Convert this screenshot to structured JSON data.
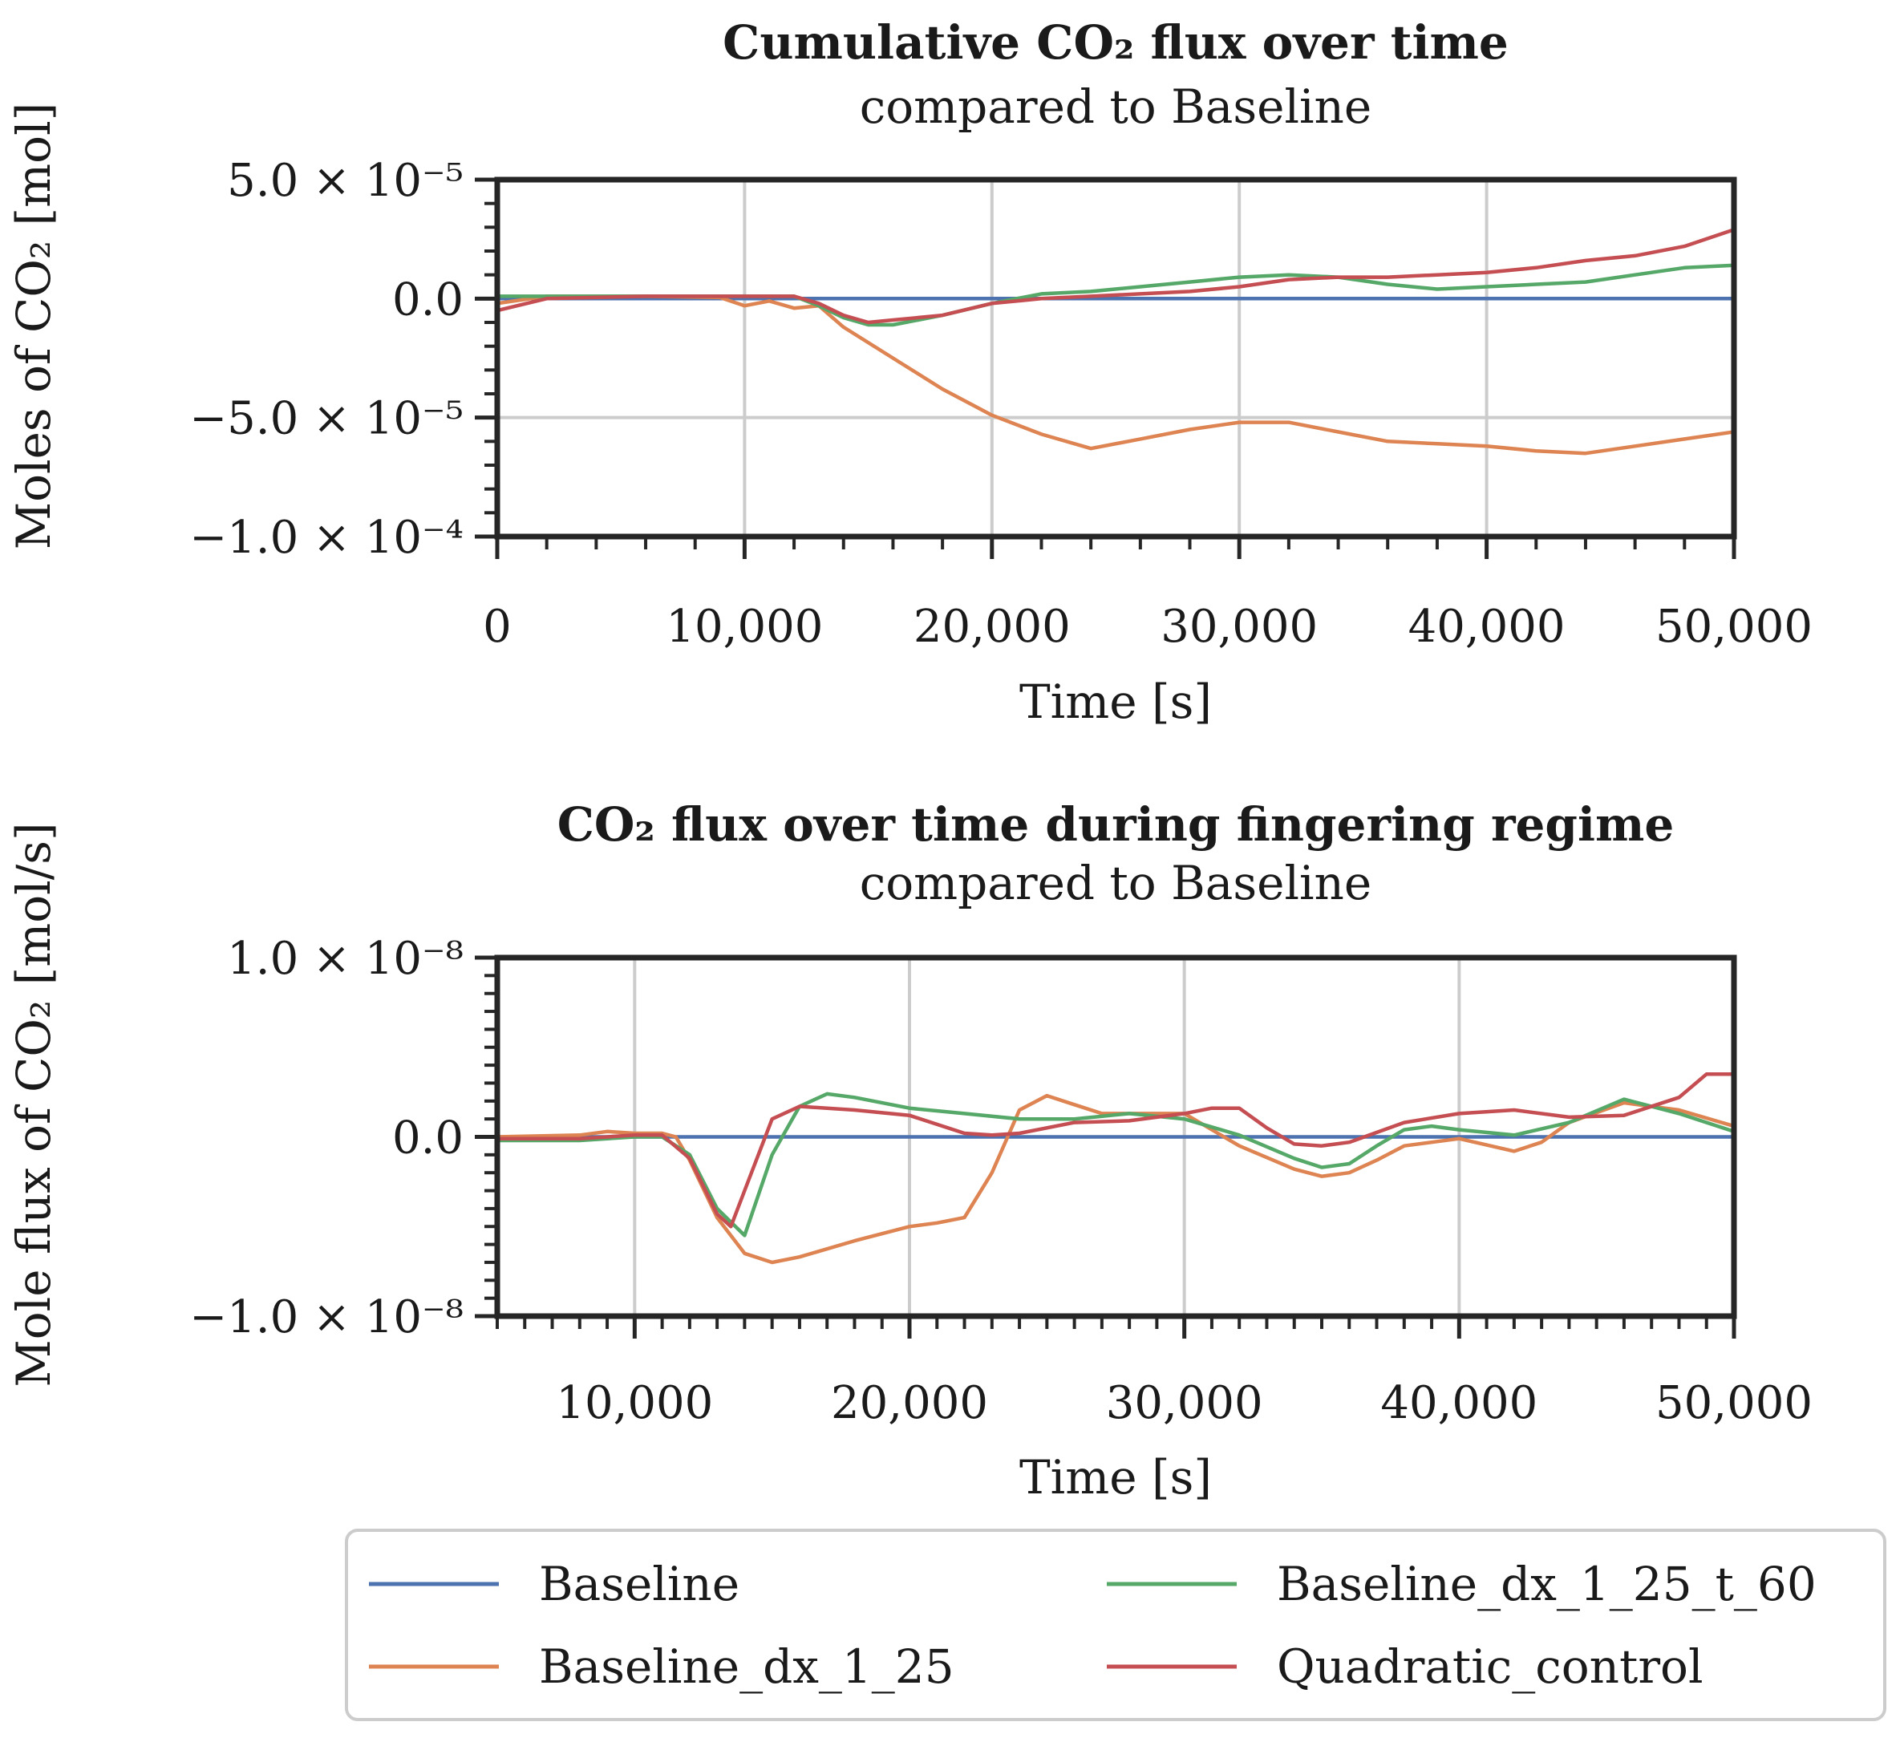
{
  "chart_data": [
    {
      "type": "line",
      "title": "Cumulative CO₂ flux over time",
      "subtitle": "compared to Baseline",
      "xlabel": "Time [s]",
      "ylabel": "Moles of CO₂ [mol]",
      "xlim": [
        0,
        50000
      ],
      "ylim": [
        -0.0001,
        5e-05
      ],
      "xticks": [
        0,
        10000,
        20000,
        30000,
        40000,
        50000
      ],
      "xtick_labels": [
        "0",
        "10,000",
        "20,000",
        "30,000",
        "40,000",
        "50,000"
      ],
      "yticks": [
        5e-05,
        0,
        -5e-05,
        -0.0001
      ],
      "ytick_labels": [
        "5.0 × 10⁻⁵",
        "0.0",
        "−5.0 × 10⁻⁵",
        "−1.0 × 10⁻⁴"
      ],
      "grid": true,
      "series": [
        {
          "name": "Baseline",
          "x": [
            0,
            50000
          ],
          "values": [
            0,
            0
          ]
        },
        {
          "name": "Baseline_dx_1_25",
          "x": [
            0,
            2000,
            6000,
            9000,
            10000,
            11000,
            12000,
            13000,
            14000,
            16000,
            18000,
            20000,
            22000,
            24000,
            26000,
            28000,
            30000,
            32000,
            34000,
            36000,
            38000,
            40000,
            42000,
            44000,
            46000,
            48000,
            50000
          ],
          "values": [
            -2e-06,
            1e-06,
            1e-06,
            5e-07,
            -3e-06,
            -1e-06,
            -4e-06,
            -3e-06,
            -1.2e-05,
            -2.5e-05,
            -3.8e-05,
            -4.9e-05,
            -5.7e-05,
            -6.3e-05,
            -5.9e-05,
            -5.5e-05,
            -5.2e-05,
            -5.2e-05,
            -5.6e-05,
            -6e-05,
            -6.1e-05,
            -6.2e-05,
            -6.4e-05,
            -6.5e-05,
            -6.2e-05,
            -5.9e-05,
            -5.6e-05
          ]
        },
        {
          "name": "Baseline_dx_1_25_t_60",
          "x": [
            0,
            2000,
            6000,
            10000,
            12000,
            13000,
            14000,
            15000,
            16000,
            18000,
            20000,
            22000,
            24000,
            26000,
            28000,
            30000,
            32000,
            34000,
            36000,
            38000,
            40000,
            42000,
            44000,
            46000,
            48000,
            50000
          ],
          "values": [
            1e-06,
            1e-06,
            1e-06,
            1e-06,
            1e-06,
            -3e-06,
            -8e-06,
            -1.1e-05,
            -1.1e-05,
            -7e-06,
            -2e-06,
            2e-06,
            3e-06,
            5e-06,
            7e-06,
            9e-06,
            1e-05,
            9e-06,
            6e-06,
            4e-06,
            5e-06,
            6e-06,
            7e-06,
            1e-05,
            1.3e-05,
            1.4e-05
          ]
        },
        {
          "name": "Quadratic_control",
          "x": [
            0,
            2000,
            6000,
            10000,
            12000,
            13000,
            14000,
            15000,
            16000,
            18000,
            20000,
            22000,
            24000,
            26000,
            28000,
            30000,
            32000,
            34000,
            36000,
            38000,
            40000,
            42000,
            44000,
            46000,
            48000,
            50000
          ],
          "values": [
            -5e-06,
            0,
            1e-06,
            1e-06,
            1e-06,
            -2e-06,
            -7e-06,
            -1e-05,
            -9e-06,
            -7e-06,
            -2e-06,
            0,
            1e-06,
            2e-06,
            3e-06,
            5e-06,
            8e-06,
            9e-06,
            9e-06,
            1e-05,
            1.1e-05,
            1.3e-05,
            1.6e-05,
            1.8e-05,
            2.2e-05,
            2.9e-05
          ]
        }
      ]
    },
    {
      "type": "line",
      "title": "CO₂ flux over time during fingering regime",
      "subtitle": "compared to Baseline",
      "xlabel": "Time [s]",
      "ylabel": "Mole flux of CO₂ [mol/s]",
      "xlim": [
        5000,
        50000
      ],
      "ylim": [
        -1e-08,
        1e-08
      ],
      "xticks": [
        10000,
        20000,
        30000,
        40000,
        50000
      ],
      "xtick_labels": [
        "10,000",
        "20,000",
        "30,000",
        "40,000",
        "50,000"
      ],
      "yticks": [
        1e-08,
        0,
        -1e-08
      ],
      "ytick_labels": [
        "1.0 × 10⁻⁸",
        "0.0",
        "−1.0 × 10⁻⁸"
      ],
      "grid": true,
      "series": [
        {
          "name": "Baseline",
          "x": [
            5000,
            50000
          ],
          "values": [
            0,
            0
          ]
        },
        {
          "name": "Baseline_dx_1_25",
          "x": [
            5000,
            8000,
            9000,
            10000,
            11000,
            11500,
            12000,
            13000,
            14000,
            15000,
            16000,
            18000,
            20000,
            21000,
            22000,
            23000,
            24000,
            25000,
            26000,
            27000,
            28000,
            30000,
            32000,
            34000,
            35000,
            36000,
            37000,
            38000,
            40000,
            42000,
            43000,
            44000,
            46000,
            48000,
            50000
          ],
          "values": [
            0,
            1e-10,
            3e-10,
            2e-10,
            2e-10,
            0,
            -1.3e-09,
            -4.5e-09,
            -6.5e-09,
            -7e-09,
            -6.7e-09,
            -5.8e-09,
            -5e-09,
            -4.8e-09,
            -4.5e-09,
            -2e-09,
            1.5e-09,
            2.3e-09,
            1.8e-09,
            1.3e-09,
            1.3e-09,
            1.3e-09,
            -5e-10,
            -1.8e-09,
            -2.2e-09,
            -2e-09,
            -1.3e-09,
            -5e-10,
            -1e-10,
            -8e-10,
            -3e-10,
            8e-10,
            1.9e-09,
            1.5e-09,
            6e-10
          ]
        },
        {
          "name": "Baseline_dx_1_25_t_60",
          "x": [
            5000,
            8000,
            10000,
            11000,
            12000,
            13000,
            14000,
            15000,
            16000,
            17000,
            18000,
            20000,
            22000,
            24000,
            26000,
            28000,
            30000,
            32000,
            34000,
            35000,
            36000,
            37000,
            38000,
            39000,
            40000,
            42000,
            44000,
            46000,
            48000,
            50000
          ],
          "values": [
            -2e-10,
            -2e-10,
            0,
            0,
            -1e-09,
            -4e-09,
            -5.5e-09,
            -1e-09,
            1.7e-09,
            2.4e-09,
            2.2e-09,
            1.6e-09,
            1.3e-09,
            1e-09,
            1e-09,
            1.3e-09,
            1e-09,
            1e-10,
            -1.2e-09,
            -1.7e-09,
            -1.5e-09,
            -5e-10,
            4e-10,
            6e-10,
            4e-10,
            1e-10,
            8e-10,
            2.1e-09,
            1.3e-09,
            3e-10
          ]
        },
        {
          "name": "Quadratic_control",
          "x": [
            5000,
            8000,
            10000,
            11000,
            12000,
            13000,
            13500,
            14000,
            15000,
            16000,
            18000,
            20000,
            22000,
            23000,
            24000,
            26000,
            28000,
            30000,
            31000,
            32000,
            33000,
            34000,
            35000,
            36000,
            38000,
            40000,
            42000,
            44000,
            46000,
            48000,
            49000,
            50000
          ],
          "values": [
            -1e-10,
            -1e-10,
            1e-10,
            1e-10,
            -1.2e-09,
            -4.3e-09,
            -5e-09,
            -3e-09,
            1e-09,
            1.7e-09,
            1.5e-09,
            1.2e-09,
            2e-10,
            1e-10,
            2e-10,
            8e-10,
            9e-10,
            1.3e-09,
            1.6e-09,
            1.6e-09,
            5e-10,
            -4e-10,
            -5e-10,
            -3e-10,
            8e-10,
            1.3e-09,
            1.5e-09,
            1.1e-09,
            1.2e-09,
            2.2e-09,
            3.5e-09,
            3.5e-09
          ]
        }
      ]
    }
  ],
  "legend": {
    "items": [
      {
        "name": "Baseline",
        "color": "#4c72b0"
      },
      {
        "name": "Baseline_dx_1_25_t_60",
        "color": "#55a868"
      },
      {
        "name": "Baseline_dx_1_25",
        "color": "#dd8452"
      },
      {
        "name": "Quadratic_control",
        "color": "#c44e52"
      }
    ]
  },
  "colors": {
    "Baseline": "#4c72b0",
    "Baseline_dx_1_25": "#dd8452",
    "Baseline_dx_1_25_t_60": "#55a868",
    "Quadratic_control": "#c44e52"
  }
}
